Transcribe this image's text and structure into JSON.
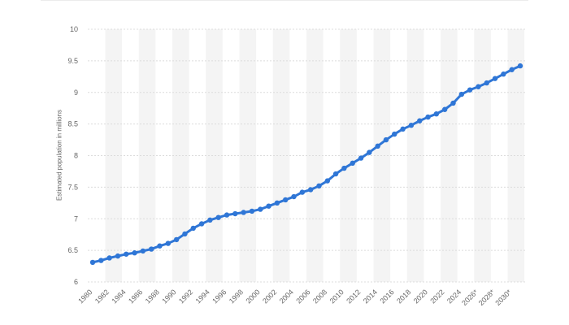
{
  "chart_data": {
    "type": "line",
    "title": "",
    "xlabel": "",
    "ylabel": "Estimated population in millions",
    "ylim": [
      6,
      10
    ],
    "yticks": [
      "6",
      "6.5",
      "7",
      "7.5",
      "8",
      "8.5",
      "9",
      "9.5",
      "10"
    ],
    "ytick_values": [
      6,
      6.5,
      7,
      7.5,
      8,
      8.5,
      9,
      9.5,
      10
    ],
    "x": [
      "1980",
      "1981",
      "1982",
      "1983",
      "1984",
      "1985",
      "1986",
      "1987",
      "1988",
      "1989",
      "1990",
      "1991",
      "1992",
      "1993",
      "1994",
      "1995",
      "1996",
      "1997",
      "1998",
      "1999",
      "2000",
      "2001",
      "2002",
      "2003",
      "2004",
      "2005",
      "2006",
      "2007",
      "2008",
      "2009",
      "2010",
      "2011",
      "2012",
      "2013",
      "2014",
      "2015",
      "2016",
      "2017",
      "2018",
      "2019",
      "2020",
      "2021",
      "2022",
      "2023",
      "2024",
      "2025",
      "2026*",
      "2027",
      "2028*",
      "2029",
      "2030*",
      "2031"
    ],
    "xtick_labels": [
      "1980",
      "1982",
      "1984",
      "1986",
      "1988",
      "1990",
      "1992",
      "1994",
      "1996",
      "1998",
      "2000",
      "2002",
      "2004",
      "2006",
      "2008",
      "2010",
      "2012",
      "2014",
      "2016",
      "2018",
      "2020",
      "2022",
      "2024",
      "2026*",
      "2028*",
      "2030*"
    ],
    "series": [
      {
        "values": [
          6.31,
          6.34,
          6.38,
          6.41,
          6.44,
          6.46,
          6.49,
          6.52,
          6.57,
          6.61,
          6.67,
          6.76,
          6.85,
          6.92,
          6.98,
          7.02,
          7.06,
          7.08,
          7.1,
          7.12,
          7.15,
          7.2,
          7.25,
          7.3,
          7.35,
          7.42,
          7.46,
          7.52,
          7.6,
          7.71,
          7.8,
          7.88,
          7.96,
          8.05,
          8.15,
          8.25,
          8.34,
          8.42,
          8.48,
          8.55,
          8.61,
          8.66,
          8.73,
          8.83,
          8.97,
          9.04,
          9.09,
          9.15,
          9.22,
          9.29,
          9.36,
          9.42
        ],
        "color": "#2f76d6"
      }
    ],
    "grid": true,
    "background_bands": true,
    "legend": "none"
  }
}
